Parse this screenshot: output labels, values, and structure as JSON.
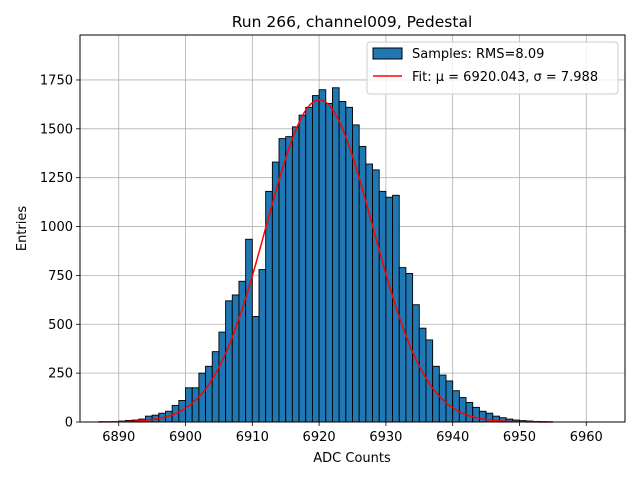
{
  "chart_data": {
    "type": "bar",
    "title": "Run 266, channel009, Pedestal",
    "xlabel": "ADC Counts",
    "ylabel": "Entries",
    "xlim": [
      6884.2,
      6965.8
    ],
    "ylim": [
      0,
      1980
    ],
    "xticks": [
      6890,
      6900,
      6910,
      6920,
      6930,
      6940,
      6950,
      6960
    ],
    "yticks": [
      0,
      250,
      500,
      750,
      1000,
      1250,
      1500,
      1750
    ],
    "grid": true,
    "legend_position": "top-right",
    "bar_color": "#1f77b4",
    "fit_color": "#ff0000",
    "legend": {
      "histogram_label": "Samples: RMS=8.09",
      "fit_label": "Fit: μ = 6920.043, σ = 7.988"
    },
    "histogram": {
      "name": "Samples: RMS=8.09",
      "bin_start": 6887,
      "bin_width": 1,
      "values": [
        1,
        0,
        2,
        5,
        8,
        10,
        15,
        30,
        35,
        45,
        55,
        85,
        110,
        175,
        175,
        250,
        285,
        360,
        460,
        620,
        650,
        720,
        935,
        540,
        780,
        1180,
        1330,
        1450,
        1460,
        1510,
        1570,
        1610,
        1670,
        1700,
        1630,
        1710,
        1640,
        1610,
        1520,
        1410,
        1320,
        1290,
        1180,
        1150,
        1160,
        790,
        760,
        600,
        480,
        420,
        285,
        240,
        210,
        160,
        125,
        100,
        75,
        55,
        45,
        30,
        22,
        15,
        10,
        7,
        5,
        3,
        2,
        1
      ]
    },
    "fit": {
      "name": "Fit: μ = 6920.043, σ = 7.988",
      "mu": 6920.043,
      "sigma": 7.988,
      "amplitude": 1648,
      "x_range": [
        6887,
        6955
      ]
    }
  }
}
